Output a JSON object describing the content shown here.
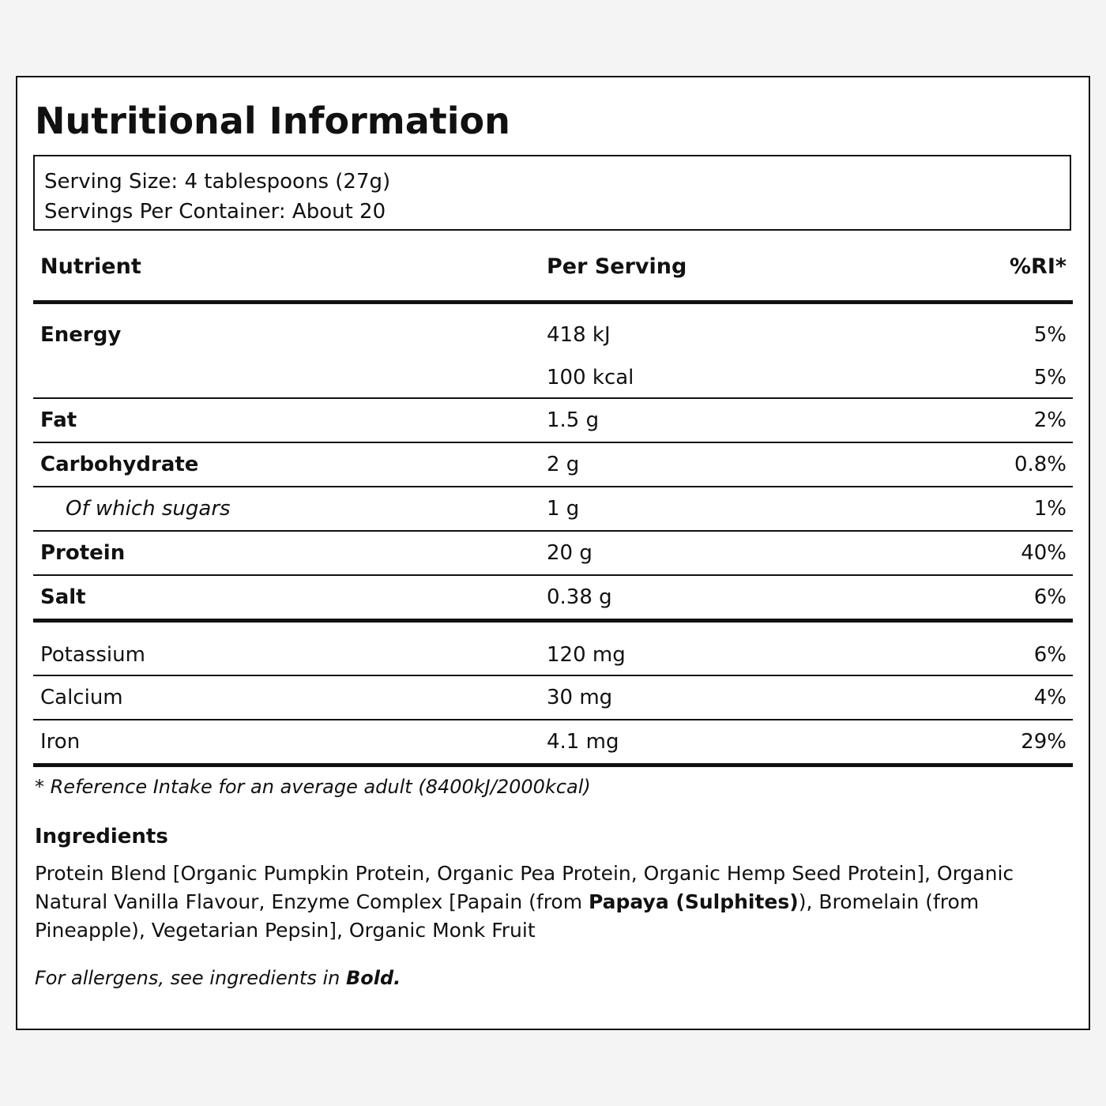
{
  "title": "Nutritional Information",
  "serving": {
    "size": "Serving Size: 4 tablespoons (27g)",
    "per_container": "Servings Per Container: About 20"
  },
  "table": {
    "headers": [
      "Nutrient",
      "Per Serving",
      "%RI*"
    ],
    "energy": {
      "name": "Energy",
      "kj": "418 kJ",
      "kj_ri": "5%",
      "kcal": "100 kcal",
      "kcal_ri": "5%"
    },
    "rows": [
      {
        "name": "Fat",
        "amount": "1.5 g",
        "ri": "2%"
      },
      {
        "name": "Carbohydrate",
        "amount": "2 g",
        "ri": "0.8%"
      },
      {
        "name": "Of which sugars",
        "amount": "1 g",
        "ri": "1%"
      },
      {
        "name": "Protein",
        "amount": "20 g",
        "ri": "40%"
      },
      {
        "name": "Salt",
        "amount": "0.38 g",
        "ri": "6%"
      }
    ],
    "minerals": [
      {
        "name": "Potassium",
        "amount": "120 mg",
        "ri": "6%"
      },
      {
        "name": "Calcium",
        "amount": "30 mg",
        "ri": "4%"
      },
      {
        "name": "Iron",
        "amount": "4.1 mg",
        "ri": "29%"
      }
    ]
  },
  "footnote": "* Reference Intake for an average adult (8400kJ/2000kcal)",
  "ingredients": {
    "title": "Ingredients",
    "text_before": "Protein Blend [Organic Pumpkin Protein, Organic Pea Protein, Organic Hemp Seed Protein], Organic Natural Vanilla Flavour, Enzyme Complex [Papain (from ",
    "allergen": "Papaya (Sulphites)",
    "text_after": "), Bromelain (from Pineapple), Vegetarian Pepsin], Organic Monk Fruit"
  },
  "allergen_note": {
    "text": "For allergens, see ingredients in ",
    "bold": "Bold."
  }
}
